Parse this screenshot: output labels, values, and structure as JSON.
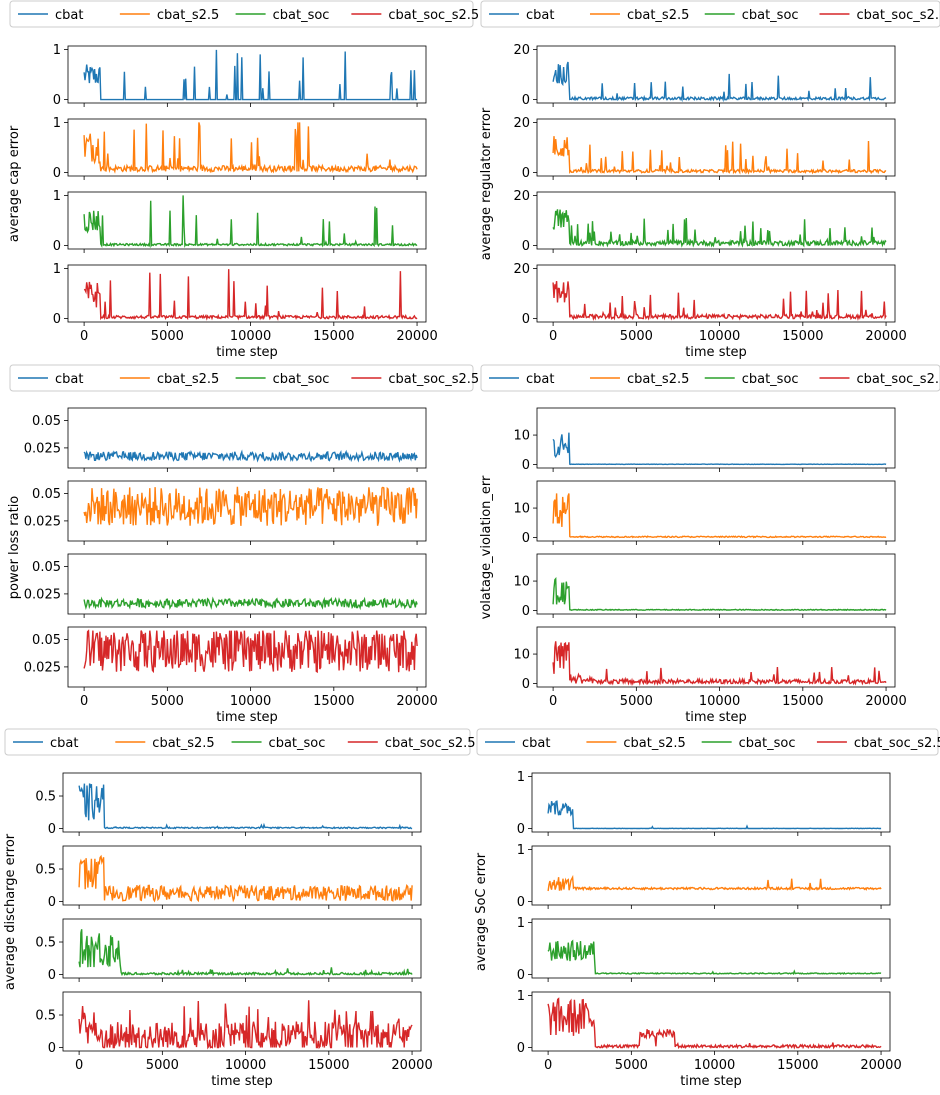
{
  "legend": {
    "entries": [
      {
        "name": "cbat",
        "color": "#1f77b4"
      },
      {
        "name": "cbat_s2.5",
        "color": "#ff7f0e"
      },
      {
        "name": "cbat_soc",
        "color": "#2ca02c"
      },
      {
        "name": "cbat_soc_s2.5",
        "color": "#d62728"
      }
    ]
  },
  "chart_data": [
    {
      "type": "line",
      "ylabel": "average cap error",
      "xlabel": "time step",
      "xlim": [
        0,
        20000
      ],
      "xticks": [
        0,
        5000,
        10000,
        15000,
        20000
      ],
      "ylim": [
        0,
        1
      ],
      "yticks": [
        0,
        1
      ],
      "series": [
        {
          "name": "cbat",
          "color": "#1f77b4",
          "profile": {
            "early_high": 0.7,
            "early_low": 0.25,
            "warmup": 1000,
            "base": 0.0,
            "noise": 0.0,
            "spike_prob": 0.07,
            "spike_max": 1.0
          }
        },
        {
          "name": "cbat_s2.5",
          "color": "#ff7f0e",
          "profile": {
            "early_high": 0.85,
            "early_low": 0.2,
            "warmup": 1000,
            "base": 0.08,
            "noise": 0.06,
            "spike_prob": 0.07,
            "spike_max": 1.0
          }
        },
        {
          "name": "cbat_soc",
          "color": "#2ca02c",
          "profile": {
            "early_high": 0.75,
            "early_low": 0.25,
            "warmup": 1000,
            "base": 0.02,
            "noise": 0.02,
            "spike_prob": 0.06,
            "spike_max": 1.0
          }
        },
        {
          "name": "cbat_soc_s2.5",
          "color": "#d62728",
          "profile": {
            "early_high": 0.75,
            "early_low": 0.2,
            "warmup": 1000,
            "base": 0.03,
            "noise": 0.03,
            "spike_prob": 0.06,
            "spike_max": 1.0
          }
        }
      ]
    },
    {
      "type": "line",
      "ylabel": "average regulator error",
      "xlabel": "time step",
      "xlim": [
        0,
        20000
      ],
      "xticks": [
        0,
        5000,
        10000,
        15000,
        20000
      ],
      "ylim": [
        0,
        20
      ],
      "yticks": [
        0,
        20
      ],
      "series": [
        {
          "name": "cbat",
          "color": "#1f77b4",
          "profile": {
            "early_high": 15,
            "early_low": 6,
            "warmup": 1000,
            "base": 0.4,
            "noise": 0.6,
            "spike_prob": 0.07,
            "spike_max": 10
          }
        },
        {
          "name": "cbat_s2.5",
          "color": "#ff7f0e",
          "profile": {
            "early_high": 15,
            "early_low": 6,
            "warmup": 1000,
            "base": 0.6,
            "noise": 0.6,
            "spike_prob": 0.07,
            "spike_max": 12
          }
        },
        {
          "name": "cbat_soc",
          "color": "#2ca02c",
          "profile": {
            "early_high": 15,
            "early_low": 6,
            "warmup": 1000,
            "base": 1.0,
            "noise": 1.0,
            "spike_prob": 0.08,
            "spike_max": 10
          }
        },
        {
          "name": "cbat_soc_s2.5",
          "color": "#d62728",
          "profile": {
            "early_high": 15,
            "early_low": 6,
            "warmup": 1000,
            "base": 0.8,
            "noise": 0.8,
            "spike_prob": 0.07,
            "spike_max": 11
          }
        }
      ]
    },
    {
      "type": "line",
      "ylabel": "power loss ratio",
      "xlabel": "time step",
      "xlim": [
        0,
        20000
      ],
      "xticks": [
        0,
        5000,
        10000,
        15000,
        20000
      ],
      "ylim": [
        0.01,
        0.058
      ],
      "yticks": [
        0.025,
        0.05
      ],
      "series": [
        {
          "name": "cbat",
          "color": "#1f77b4",
          "profile": {
            "early_high": 0.02,
            "early_low": 0.017,
            "warmup": 0,
            "base": 0.0175,
            "noise": 0.004,
            "spike_prob": 0.0,
            "spike_max": 0.0
          }
        },
        {
          "name": "cbat_s2.5",
          "color": "#ff7f0e",
          "profile": {
            "early_high": 0.05,
            "early_low": 0.03,
            "warmup": 0,
            "base": 0.038,
            "noise": 0.018,
            "spike_prob": 0.0,
            "spike_max": 0.0
          }
        },
        {
          "name": "cbat_soc",
          "color": "#2ca02c",
          "profile": {
            "early_high": 0.022,
            "early_low": 0.015,
            "warmup": 0,
            "base": 0.0165,
            "noise": 0.004,
            "spike_prob": 0.0,
            "spike_max": 0.0
          }
        },
        {
          "name": "cbat_soc_s2.5",
          "color": "#d62728",
          "profile": {
            "early_high": 0.05,
            "early_low": 0.028,
            "warmup": 0,
            "base": 0.04,
            "noise": 0.02,
            "spike_prob": 0.0,
            "spike_max": 0.0
          }
        }
      ]
    },
    {
      "type": "line",
      "ylabel": "volatage_violation_err",
      "xlabel": "time step",
      "xlim": [
        0,
        20000
      ],
      "xticks": [
        0,
        5000,
        10000,
        15000,
        20000
      ],
      "ylim": [
        0,
        18
      ],
      "yticks": [
        0,
        10
      ],
      "series": [
        {
          "name": "cbat",
          "color": "#1f77b4",
          "profile": {
            "early_high": 11,
            "early_low": 2,
            "warmup": 1000,
            "base": 0.05,
            "noise": 0.05,
            "spike_prob": 0.0,
            "spike_max": 0
          }
        },
        {
          "name": "cbat_s2.5",
          "color": "#ff7f0e",
          "profile": {
            "early_high": 16,
            "early_low": 3,
            "warmup": 1000,
            "base": 0.2,
            "noise": 0.2,
            "spike_prob": 0.0,
            "spike_max": 0
          }
        },
        {
          "name": "cbat_soc",
          "color": "#2ca02c",
          "profile": {
            "early_high": 11,
            "early_low": 2,
            "warmup": 1000,
            "base": 0.2,
            "noise": 0.15,
            "spike_prob": 0.0,
            "spike_max": 0
          }
        },
        {
          "name": "cbat_soc_s2.5",
          "color": "#d62728",
          "profile": {
            "early_high": 16,
            "early_low": 3,
            "warmup": 1000,
            "base": 0.6,
            "noise": 0.8,
            "spike_prob": 0.05,
            "spike_max": 5,
            "decay_until": 3000
          }
        }
      ]
    },
    {
      "type": "line",
      "ylabel": "average discharge error",
      "xlabel": "time step",
      "xlim": [
        0,
        20000
      ],
      "xticks": [
        0,
        5000,
        10000,
        15000,
        20000
      ],
      "ylim": [
        0,
        0.8
      ],
      "yticks": [
        0.0,
        0.5
      ],
      "series": [
        {
          "name": "cbat",
          "color": "#1f77b4",
          "profile": {
            "early_high": 0.7,
            "early_low": 0.1,
            "warmup": 1500,
            "base": 0.01,
            "noise": 0.01,
            "spike_prob": 0.03,
            "spike_max": 0.05
          }
        },
        {
          "name": "cbat_s2.5",
          "color": "#ff7f0e",
          "profile": {
            "early_high": 0.7,
            "early_low": 0.15,
            "warmup": 1500,
            "base": 0.13,
            "noise": 0.12,
            "spike_prob": 0.03,
            "spike_max": 0.1
          }
        },
        {
          "name": "cbat_soc",
          "color": "#2ca02c",
          "profile": {
            "early_high": 0.7,
            "early_low": 0.1,
            "warmup": 2500,
            "base": 0.01,
            "noise": 0.02,
            "spike_prob": 0.04,
            "spike_max": 0.1
          }
        },
        {
          "name": "cbat_soc_s2.5",
          "color": "#d62728",
          "profile": {
            "early_high": 0.7,
            "early_low": 0.05,
            "warmup": 1000,
            "base": 0.15,
            "noise": 0.25,
            "spike_prob": 0.08,
            "spike_max": 0.6
          }
        }
      ]
    },
    {
      "type": "line",
      "ylabel": "average SoC error",
      "xlabel": "time step",
      "xlim": [
        0,
        20000
      ],
      "xticks": [
        0,
        5000,
        10000,
        15000,
        20000
      ],
      "ylim": [
        0,
        1
      ],
      "yticks": [
        0,
        1
      ],
      "series": [
        {
          "name": "cbat",
          "color": "#1f77b4",
          "profile": {
            "early_high": 0.55,
            "early_low": 0.25,
            "warmup": 1500,
            "base": 0.0,
            "noise": 0.005,
            "spike_prob": 0.01,
            "spike_max": 0.05
          }
        },
        {
          "name": "cbat_s2.5",
          "color": "#ff7f0e",
          "profile": {
            "early_high": 0.5,
            "early_low": 0.2,
            "warmup": 1500,
            "base": 0.25,
            "noise": 0.02,
            "spike_prob": 0.01,
            "spike_max": 0.2
          }
        },
        {
          "name": "cbat_soc",
          "color": "#2ca02c",
          "profile": {
            "early_high": 0.65,
            "early_low": 0.25,
            "warmup": 2800,
            "base": 0.02,
            "noise": 0.01,
            "spike_prob": 0.01,
            "spike_max": 0.05
          }
        },
        {
          "name": "cbat_soc_s2.5",
          "color": "#d62728",
          "profile": {
            "early_high": 0.95,
            "early_low": 0.2,
            "warmup": 2800,
            "base": 0.02,
            "noise": 0.03,
            "spike_prob": 0.02,
            "spike_max": 0.1,
            "bump_start": 5500,
            "bump_end": 7600,
            "bump_level": 0.3
          }
        }
      ]
    }
  ]
}
